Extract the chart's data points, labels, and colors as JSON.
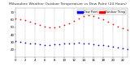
{
  "title": "Milwaukee Weather Outdoor Temperature vs Dew Point (24 Hours)",
  "title_fontsize": 3.2,
  "background_color": "#ffffff",
  "grid_color": "#aaaaaa",
  "temp_color": "#ff0000",
  "dew_color": "#0000ff",
  "temp_label": "Outdoor Temp",
  "dew_label": "Dew Point",
  "ylim": [
    10,
    75
  ],
  "xlim": [
    0,
    23
  ],
  "temp_x": [
    0,
    1,
    2,
    3,
    4,
    5,
    6,
    7,
    8,
    9,
    10,
    11,
    12,
    13,
    14,
    15,
    16,
    17,
    18,
    19,
    20,
    21,
    22,
    23
  ],
  "temp_y": [
    62,
    61,
    59,
    57,
    55,
    53,
    51,
    50,
    50,
    51,
    53,
    55,
    58,
    62,
    65,
    66,
    65,
    63,
    60,
    57,
    54,
    51,
    49,
    47
  ],
  "dew_x": [
    0,
    1,
    2,
    3,
    4,
    5,
    6,
    7,
    8,
    9,
    10,
    11,
    12,
    13,
    14,
    15,
    16,
    17,
    18,
    19,
    20,
    21,
    22,
    23
  ],
  "dew_y": [
    32,
    31,
    30,
    29,
    28,
    27,
    26,
    26,
    27,
    27,
    28,
    28,
    29,
    30,
    29,
    28,
    27,
    26,
    26,
    25,
    24,
    23,
    22,
    21
  ],
  "vgrid_positions": [
    0,
    2,
    4,
    6,
    8,
    10,
    12,
    14,
    16,
    18,
    20,
    22
  ],
  "ytick_values": [
    20,
    30,
    40,
    50,
    60,
    70
  ],
  "xtick_values": [
    0,
    2,
    4,
    6,
    8,
    10,
    12,
    14,
    16,
    18,
    20,
    22
  ],
  "marker_size": 1.5,
  "tick_fontsize": 2.8,
  "legend_fontsize": 2.5
}
